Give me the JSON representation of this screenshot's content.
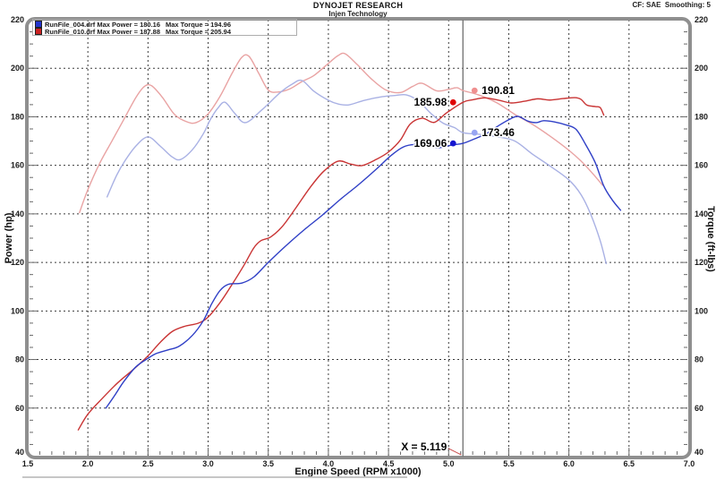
{
  "header": {
    "title": "DYNOJET RESEARCH",
    "subtitle": "Injen Technology",
    "correction": "CF: SAE  Smoothing: 5"
  },
  "legend": {
    "runs": [
      {
        "file": "RunFile_004.drf",
        "max_power": "Max Power = 180.16",
        "max_torque": "Max Torque = 194.96",
        "color": "#2233cc"
      },
      {
        "file": "RunFile_010.drf",
        "max_power": "Max Power = 187.88",
        "max_torque": "Max Torque = 205.94",
        "color": "#cc2222"
      }
    ]
  },
  "cursor": {
    "x_text": "X = 5.119",
    "x": 5.119,
    "readouts": [
      {
        "id": "power-010",
        "label": "185.98",
        "value": 185.98,
        "series": "RunFile_010 Power",
        "placement": "left",
        "dot_color": "#e00000"
      },
      {
        "id": "torque-010",
        "label": "190.81",
        "value": 190.81,
        "series": "RunFile_010 Torque",
        "placement": "right",
        "dot_color": "#ef8f8f"
      },
      {
        "id": "power-004",
        "label": "169.06",
        "value": 169.06,
        "series": "RunFile_004 Power",
        "placement": "left",
        "dot_color": "#1616d0"
      },
      {
        "id": "torque-004",
        "label": "173.46",
        "value": 173.46,
        "series": "RunFile_004 Torque",
        "placement": "right",
        "dot_color": "#98a5f2"
      }
    ]
  },
  "chart_data": {
    "type": "line",
    "title": "DYNOJET RESEARCH",
    "xlabel": "Engine Speed (RPM x1000)",
    "ylabel_left": "Power (hp)",
    "ylabel_right": "Torque (ft-lbs)",
    "xlim": [
      1.5,
      7.0
    ],
    "ylim": [
      40,
      220
    ],
    "grid": true,
    "x_ticks": [
      "1.5",
      "2.0",
      "2.5",
      "3.0",
      "3.5",
      "4.0",
      "4.5",
      "5.0",
      "5.5",
      "6.0",
      "6.5",
      "7.0"
    ],
    "y_ticks": [
      40,
      60,
      80,
      100,
      120,
      140,
      160,
      180,
      200,
      220
    ],
    "series": [
      {
        "id": "torque-010",
        "name": "RunFile_010 Torque (ft-lbs)",
        "run": "RunFile_010.drf",
        "role": "torque",
        "color": "#e9a3a3",
        "points": [
          [
            1.93,
            140.5
          ],
          [
            2.0,
            150
          ],
          [
            2.1,
            161
          ],
          [
            2.2,
            170
          ],
          [
            2.3,
            179
          ],
          [
            2.4,
            188
          ],
          [
            2.47,
            192.5
          ],
          [
            2.53,
            192.8
          ],
          [
            2.62,
            188
          ],
          [
            2.72,
            181
          ],
          [
            2.82,
            178
          ],
          [
            2.9,
            177.6
          ],
          [
            3.0,
            181.2
          ],
          [
            3.1,
            188.5
          ],
          [
            3.2,
            198
          ],
          [
            3.28,
            204.5
          ],
          [
            3.34,
            204.9
          ],
          [
            3.42,
            198
          ],
          [
            3.5,
            191
          ],
          [
            3.58,
            190.2
          ],
          [
            3.68,
            191.5
          ],
          [
            3.78,
            194.5
          ],
          [
            3.88,
            197
          ],
          [
            4.0,
            202
          ],
          [
            4.08,
            205.2
          ],
          [
            4.14,
            205.94
          ],
          [
            4.24,
            201.5
          ],
          [
            4.36,
            195.5
          ],
          [
            4.48,
            191
          ],
          [
            4.6,
            190
          ],
          [
            4.7,
            192.5
          ],
          [
            4.78,
            193.8
          ],
          [
            4.9,
            190.7
          ],
          [
            5.0,
            191.3
          ],
          [
            5.07,
            192
          ],
          [
            5.119,
            190.81
          ],
          [
            5.25,
            189
          ],
          [
            5.4,
            185.8
          ],
          [
            5.55,
            181
          ],
          [
            5.7,
            176.8
          ],
          [
            5.85,
            171.8
          ],
          [
            6.0,
            166.2
          ],
          [
            6.1,
            161.8
          ],
          [
            6.2,
            156.5
          ],
          [
            6.28,
            151.8
          ]
        ]
      },
      {
        "id": "torque-004",
        "name": "RunFile_004 Torque (ft-lbs)",
        "run": "RunFile_004.drf",
        "role": "torque",
        "color": "#a9b1e4",
        "points": [
          [
            2.16,
            147
          ],
          [
            2.24,
            156
          ],
          [
            2.31,
            162
          ],
          [
            2.4,
            168
          ],
          [
            2.5,
            171.7
          ],
          [
            2.6,
            168
          ],
          [
            2.7,
            163.5
          ],
          [
            2.77,
            162.4
          ],
          [
            2.87,
            166.5
          ],
          [
            2.96,
            173
          ],
          [
            3.02,
            179
          ],
          [
            3.08,
            183.5
          ],
          [
            3.14,
            186
          ],
          [
            3.22,
            181.5
          ],
          [
            3.31,
            177.6
          ],
          [
            3.45,
            183
          ],
          [
            3.6,
            190
          ],
          [
            3.7,
            193.5
          ],
          [
            3.78,
            194.96
          ],
          [
            3.88,
            190.5
          ],
          [
            4.0,
            186.8
          ],
          [
            4.08,
            185.3
          ],
          [
            4.17,
            184.9
          ],
          [
            4.3,
            186.8
          ],
          [
            4.45,
            188.3
          ],
          [
            4.56,
            188.8
          ],
          [
            4.65,
            189
          ],
          [
            4.75,
            186.5
          ],
          [
            4.85,
            181.5
          ],
          [
            4.95,
            177.5
          ],
          [
            5.05,
            175.5
          ],
          [
            5.119,
            173.46
          ],
          [
            5.25,
            172.8
          ],
          [
            5.4,
            171.8
          ],
          [
            5.55,
            170
          ],
          [
            5.7,
            164.5
          ],
          [
            5.85,
            159.5
          ],
          [
            6.0,
            154
          ],
          [
            6.1,
            148
          ],
          [
            6.18,
            140
          ],
          [
            6.26,
            129
          ],
          [
            6.31,
            119.5
          ]
        ]
      },
      {
        "id": "power-010",
        "name": "RunFile_010 Power (hp)",
        "run": "RunFile_010.drf",
        "role": "power",
        "color": "#c93434",
        "points": [
          [
            1.92,
            51
          ],
          [
            2.0,
            57.5
          ],
          [
            2.12,
            64
          ],
          [
            2.25,
            70.5
          ],
          [
            2.38,
            76
          ],
          [
            2.5,
            81.5
          ],
          [
            2.6,
            87
          ],
          [
            2.7,
            91.5
          ],
          [
            2.8,
            93.6
          ],
          [
            2.92,
            95
          ],
          [
            3.0,
            97.5
          ],
          [
            3.1,
            103.5
          ],
          [
            3.2,
            111
          ],
          [
            3.3,
            119
          ],
          [
            3.38,
            126
          ],
          [
            3.44,
            129
          ],
          [
            3.52,
            130.5
          ],
          [
            3.62,
            135
          ],
          [
            3.73,
            142.5
          ],
          [
            3.85,
            151
          ],
          [
            3.96,
            157.5
          ],
          [
            4.08,
            161.7
          ],
          [
            4.18,
            160.6
          ],
          [
            4.28,
            159.9
          ],
          [
            4.4,
            162.5
          ],
          [
            4.5,
            165.5
          ],
          [
            4.6,
            170.5
          ],
          [
            4.68,
            177
          ],
          [
            4.78,
            179.4
          ],
          [
            4.88,
            177.7
          ],
          [
            4.98,
            181.5
          ],
          [
            5.119,
            185.98
          ],
          [
            5.2,
            187
          ],
          [
            5.3,
            187.8
          ],
          [
            5.42,
            186.8
          ],
          [
            5.52,
            185.7
          ],
          [
            5.63,
            186.4
          ],
          [
            5.74,
            187.4
          ],
          [
            5.84,
            186.9
          ],
          [
            5.95,
            187.5
          ],
          [
            6.05,
            187.88
          ],
          [
            6.1,
            187.2
          ],
          [
            6.15,
            184.8
          ],
          [
            6.22,
            184.2
          ],
          [
            6.26,
            183.8
          ],
          [
            6.29,
            180.7
          ]
        ]
      },
      {
        "id": "power-004",
        "name": "RunFile_004 Power (hp)",
        "run": "RunFile_004.drf",
        "role": "power",
        "color": "#2f3fc6",
        "points": [
          [
            2.15,
            60
          ],
          [
            2.22,
            65
          ],
          [
            2.3,
            71
          ],
          [
            2.4,
            77
          ],
          [
            2.5,
            80.5
          ],
          [
            2.57,
            82.5
          ],
          [
            2.67,
            84
          ],
          [
            2.76,
            85.5
          ],
          [
            2.87,
            90
          ],
          [
            2.96,
            96
          ],
          [
            3.03,
            103
          ],
          [
            3.1,
            108.5
          ],
          [
            3.17,
            111
          ],
          [
            3.28,
            111.5
          ],
          [
            3.38,
            114
          ],
          [
            3.5,
            120
          ],
          [
            3.65,
            127
          ],
          [
            3.8,
            133.5
          ],
          [
            3.95,
            139.5
          ],
          [
            4.1,
            146
          ],
          [
            4.25,
            152
          ],
          [
            4.4,
            158.5
          ],
          [
            4.52,
            164
          ],
          [
            4.62,
            167.5
          ],
          [
            4.72,
            168.6
          ],
          [
            4.82,
            168
          ],
          [
            4.92,
            167.3
          ],
          [
            5.02,
            168.3
          ],
          [
            5.119,
            169.06
          ],
          [
            5.22,
            171
          ],
          [
            5.32,
            173.2
          ],
          [
            5.42,
            176.5
          ],
          [
            5.52,
            179.3
          ],
          [
            5.58,
            180.16
          ],
          [
            5.66,
            178.2
          ],
          [
            5.73,
            177.6
          ],
          [
            5.79,
            178.4
          ],
          [
            5.88,
            177.9
          ],
          [
            5.98,
            176.6
          ],
          [
            6.06,
            174.8
          ],
          [
            6.14,
            168.5
          ],
          [
            6.22,
            161
          ],
          [
            6.29,
            151.5
          ],
          [
            6.36,
            145.8
          ],
          [
            6.43,
            141.5
          ]
        ]
      }
    ]
  }
}
